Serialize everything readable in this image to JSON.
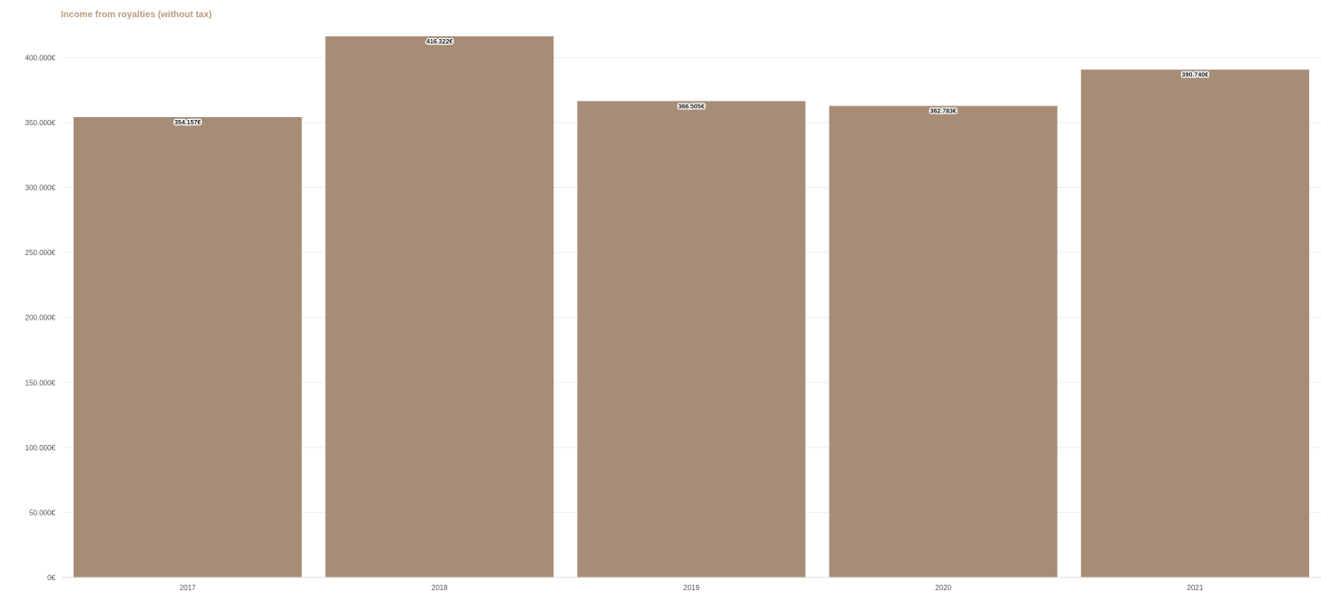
{
  "chart_data": {
    "type": "bar",
    "title": "Income from royalties (without tax)",
    "categories": [
      "2017",
      "2018",
      "2019",
      "2020",
      "2021"
    ],
    "values": [
      354157,
      416322,
      366505,
      362783,
      390740
    ],
    "data_labels": [
      "354.157€",
      "416.322€",
      "366.505€",
      "362.783€",
      "390.740€"
    ],
    "y_ticks": [
      0,
      50000,
      100000,
      150000,
      200000,
      250000,
      300000,
      350000,
      400000
    ],
    "y_tick_labels": [
      "0€",
      "50.000€",
      "100.000€",
      "150.000€",
      "200.000€",
      "250.000€",
      "300.000€",
      "350.000€",
      "400.000€"
    ],
    "ylim": [
      0,
      416322
    ],
    "xlabel": "",
    "ylabel": "",
    "grid": true,
    "bar_color": "#a88d76",
    "title_color": "#b89b80"
  }
}
